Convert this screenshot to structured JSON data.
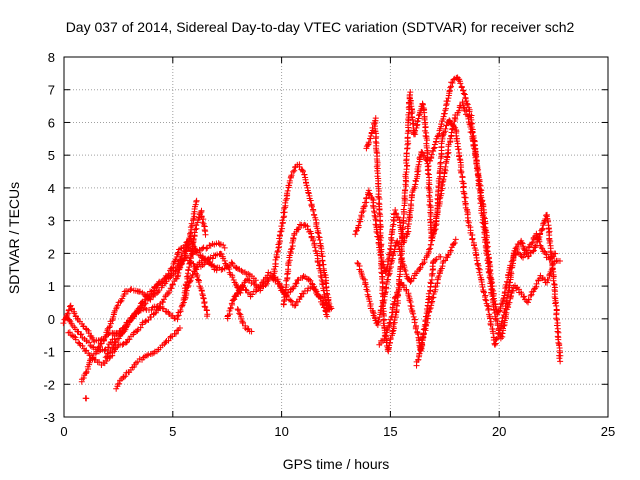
{
  "chart_data": {
    "type": "scatter",
    "title": "Day 037 of 2014, Sidereal Day-to-day VTEC variation (SDTVAR) for receiver sch2",
    "xlabel": "GPS time / hours",
    "ylabel": "SDTVAR / TECUs",
    "xlim": [
      0,
      25
    ],
    "ylim": [
      -3,
      8
    ],
    "xticks": [
      "0",
      "5",
      "10",
      "15",
      "20",
      "25"
    ],
    "yticks": [
      "-3",
      "-2",
      "-1",
      "0",
      "1",
      "2",
      "3",
      "4",
      "5",
      "6",
      "7",
      "8"
    ],
    "grid": true,
    "marker": "+",
    "color": "#ff0000",
    "traces": [
      {
        "x": [
          0.0,
          0.3,
          0.6,
          1.0,
          1.4,
          1.8,
          2.2,
          2.6,
          3.0,
          3.4,
          3.8,
          4.2,
          4.6,
          5.0,
          5.3,
          5.6,
          5.9,
          6.2,
          6.6,
          7.0,
          7.4
        ],
        "y": [
          -0.1,
          0.4,
          0.0,
          -0.3,
          -0.7,
          -0.6,
          -0.4,
          -0.5,
          -0.1,
          0.3,
          0.7,
          1.0,
          1.2,
          1.6,
          2.1,
          2.3,
          2.0,
          2.1,
          2.2,
          2.3,
          2.2
        ]
      },
      {
        "x": [
          0.1,
          0.4,
          0.8,
          1.2,
          1.6,
          2.0,
          2.4,
          2.8,
          3.2,
          3.6,
          4.0,
          4.4,
          4.8,
          5.2,
          5.5,
          5.8,
          6.1,
          6.5,
          6.9,
          7.3,
          7.7,
          8.0,
          8.4,
          8.8
        ],
        "y": [
          0.1,
          -0.2,
          -0.5,
          -0.8,
          -1.0,
          -0.9,
          -0.5,
          -0.2,
          0.1,
          0.4,
          0.7,
          1.1,
          1.3,
          1.6,
          2.0,
          2.5,
          2.0,
          1.8,
          1.6,
          1.5,
          1.7,
          1.5,
          1.4,
          1.2
        ]
      },
      {
        "x": [
          0.2,
          0.5,
          0.9,
          1.3,
          1.7,
          2.1,
          2.5,
          2.9,
          3.3,
          3.7,
          4.1,
          4.5,
          4.9,
          5.2,
          5.5,
          5.8,
          6.1
        ],
        "y": [
          -0.4,
          -0.6,
          -0.9,
          -1.2,
          -1.4,
          -1.2,
          -0.8,
          -0.7,
          -0.4,
          -0.1,
          0.1,
          0.5,
          0.9,
          1.3,
          1.8,
          2.6,
          3.6
        ]
      },
      {
        "x": [
          0.8,
          1.0,
          1.2,
          1.5,
          1.8,
          2.1,
          2.4,
          2.8,
          3.2,
          3.6,
          4.0,
          4.4,
          4.8,
          5.2,
          5.6,
          6.0,
          6.3,
          6.6
        ],
        "y": [
          -1.9,
          -1.7,
          -1.3,
          -1.0,
          -0.7,
          -0.2,
          0.3,
          0.8,
          0.9,
          0.8,
          0.6,
          0.9,
          1.2,
          1.5,
          1.9,
          1.6,
          0.9,
          0.1
        ]
      },
      {
        "x": [
          1.0,
          1.05
        ],
        "y": [
          -2.45,
          -2.45
        ]
      },
      {
        "x": [
          2.4,
          2.7,
          3.0,
          3.4,
          3.8,
          4.2,
          4.6,
          5.0,
          5.3
        ],
        "y": [
          -2.1,
          -1.8,
          -1.6,
          -1.3,
          -1.1,
          -1.0,
          -0.8,
          -0.5,
          -0.3
        ]
      },
      {
        "x": [
          1.9,
          2.2,
          2.5,
          2.8,
          3.1,
          3.4,
          3.7,
          4.0,
          4.3,
          4.6,
          4.9,
          5.2,
          5.5,
          5.8,
          6.1,
          6.4,
          6.7,
          7.0
        ],
        "y": [
          -1.2,
          -0.9,
          -0.6,
          -0.3,
          0.0,
          0.2,
          0.3,
          0.3,
          0.4,
          0.3,
          0.1,
          0.0,
          0.5,
          1.2,
          1.6,
          1.9,
          1.7,
          1.5
        ]
      },
      {
        "x": [
          7.5,
          7.8,
          8.1,
          8.4,
          8.7,
          9.0,
          9.3,
          9.6,
          9.9,
          10.2,
          10.5,
          10.8,
          11.1,
          11.4,
          11.7,
          12.0,
          12.3
        ],
        "y": [
          0.0,
          0.6,
          0.9,
          1.2,
          1.1,
          0.9,
          1.1,
          1.3,
          1.0,
          0.7,
          0.9,
          1.2,
          1.3,
          1.1,
          0.7,
          0.5,
          0.3
        ]
      },
      {
        "x": [
          7.8,
          8.2,
          8.6,
          9.0,
          9.4,
          9.8,
          10.2,
          10.6,
          11.0,
          11.4,
          11.8,
          12.1
        ],
        "y": [
          0.6,
          1.0,
          0.7,
          1.0,
          1.4,
          1.2,
          0.7,
          0.4,
          0.8,
          1.0,
          0.6,
          0.1
        ]
      },
      {
        "x": [
          8.0,
          8.2,
          8.4,
          8.6
        ],
        "y": [
          0.3,
          -0.1,
          -0.3,
          -0.4
        ]
      },
      {
        "x": [
          9.6,
          9.9,
          10.2,
          10.4,
          10.6,
          10.8,
          11.0,
          11.2,
          11.4,
          11.6,
          11.8,
          12.0,
          12.2
        ],
        "y": [
          1.2,
          2.4,
          3.6,
          4.3,
          4.6,
          4.7,
          4.5,
          4.0,
          3.4,
          2.9,
          2.2,
          1.3,
          0.3
        ]
      },
      {
        "x": [
          10.1,
          10.3,
          10.6,
          10.9,
          11.2,
          11.5,
          11.8,
          12.1
        ],
        "y": [
          0.4,
          1.6,
          2.6,
          2.9,
          2.8,
          2.3,
          1.4,
          0.2
        ]
      },
      {
        "x": [
          13.4,
          13.6,
          13.8,
          14.0,
          14.2,
          14.4,
          14.6,
          14.8,
          15.0,
          15.2,
          15.4,
          15.6,
          15.8,
          16.0,
          16.2,
          16.4,
          16.6,
          16.8,
          17.0,
          17.2,
          17.5,
          17.8,
          18.1,
          18.4,
          18.7,
          19.0,
          19.3,
          19.6,
          19.9,
          20.2,
          20.5,
          20.8,
          21.1,
          21.4,
          21.7,
          22.0,
          22.3,
          22.6
        ],
        "y": [
          2.6,
          3.0,
          3.4,
          3.9,
          3.6,
          2.6,
          1.8,
          1.4,
          2.1,
          3.3,
          3.0,
          2.3,
          2.7,
          3.8,
          4.3,
          5.1,
          4.9,
          4.8,
          5.2,
          5.6,
          6.3,
          7.2,
          7.4,
          6.9,
          6.2,
          4.6,
          3.2,
          1.3,
          0.1,
          0.6,
          1.6,
          2.1,
          1.9,
          2.2,
          2.6,
          2.1,
          1.8,
          2.0
        ]
      },
      {
        "x": [
          13.5,
          13.8,
          14.1,
          14.4,
          14.7,
          15.0,
          15.3,
          15.6,
          15.9,
          16.2,
          16.5,
          16.8,
          17.1,
          17.4,
          17.7,
          18.0,
          18.3,
          18.6,
          18.9,
          19.2,
          19.5,
          19.8,
          20.1,
          20.4,
          20.7,
          21.0,
          21.3,
          21.6,
          21.9,
          22.2,
          22.5,
          22.8
        ],
        "y": [
          1.7,
          1.2,
          0.4,
          -0.2,
          0.6,
          1.6,
          2.4,
          1.6,
          1.1,
          1.4,
          1.7,
          2.1,
          3.0,
          4.1,
          5.3,
          6.2,
          6.6,
          6.1,
          5.1,
          3.3,
          1.6,
          0.1,
          -0.6,
          0.4,
          1.0,
          0.8,
          0.5,
          0.9,
          1.3,
          1.1,
          1.7,
          1.8
        ]
      },
      {
        "x": [
          13.9,
          14.1,
          14.3,
          14.5,
          14.7,
          14.9,
          15.1,
          15.3,
          15.5,
          15.7,
          15.9,
          16.1,
          16.3,
          16.5,
          16.7,
          16.9,
          17.1,
          17.4,
          17.7,
          18.0,
          18.3,
          18.6,
          18.9,
          19.2,
          19.5,
          19.8,
          20.1,
          20.4,
          20.7,
          21.0,
          21.3,
          21.6,
          21.9,
          22.2,
          22.5,
          22.8
        ],
        "y": [
          5.2,
          5.6,
          6.1,
          3.3,
          -0.2,
          -1.0,
          -0.4,
          0.3,
          1.9,
          4.1,
          6.9,
          5.6,
          6.2,
          6.6,
          5.1,
          2.4,
          2.9,
          5.6,
          6.1,
          5.8,
          4.3,
          2.9,
          2.1,
          1.1,
          0.3,
          -0.8,
          -0.2,
          0.7,
          2.1,
          2.4,
          1.9,
          2.1,
          2.6,
          3.2,
          1.3,
          -1.3
        ]
      },
      {
        "x": [
          14.5,
          14.8,
          15.0,
          15.2,
          15.5,
          15.8,
          16.1,
          16.4,
          16.7,
          17.0,
          17.3
        ],
        "y": [
          -0.8,
          -0.5,
          -0.1,
          0.6,
          1.1,
          0.8,
          0.0,
          -1.0,
          0.3,
          1.8,
          1.9
        ]
      },
      {
        "x": [
          16.2,
          16.5,
          16.8,
          17.1,
          17.4,
          17.7,
          18.0
        ],
        "y": [
          -1.4,
          -0.6,
          0.3,
          1.0,
          1.7,
          2.0,
          2.4
        ]
      },
      {
        "x": [
          5.5,
          5.7,
          5.9,
          6.1,
          6.3,
          6.5
        ],
        "y": [
          0.6,
          1.4,
          2.2,
          2.9,
          3.3,
          2.6
        ]
      },
      {
        "x": [
          6.3,
          6.6,
          6.9,
          7.2,
          7.5,
          7.8,
          8.1
        ],
        "y": [
          1.6,
          1.8,
          1.9,
          2.0,
          1.6,
          1.2,
          0.8
        ]
      }
    ]
  }
}
